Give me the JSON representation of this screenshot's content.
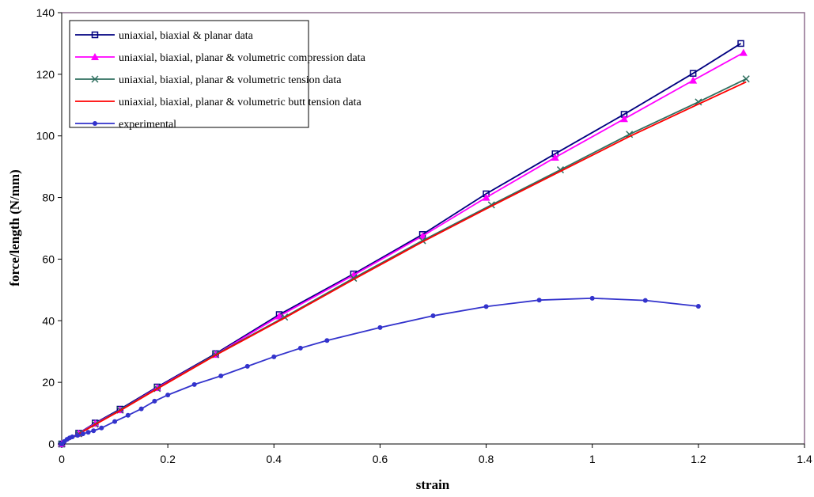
{
  "chart_data": {
    "type": "line",
    "x_label": "strain",
    "y_label": "force/length (N/mm)",
    "xlim": [
      0,
      1.4
    ],
    "xticks": [
      0,
      0.2,
      0.4,
      0.6,
      0.8,
      1,
      1.2,
      1.4
    ],
    "ylim": [
      0,
      140
    ],
    "yticks": [
      0,
      20,
      40,
      60,
      80,
      100,
      120,
      140
    ],
    "grid": false,
    "legend": "upper-left",
    "series": [
      {
        "name": "uniaxial, biaxial & planar data",
        "color": "#000080",
        "marker": "square",
        "x": [
          0,
          0.032,
          0.063,
          0.11,
          0.18,
          0.29,
          0.41,
          0.55,
          0.68,
          0.8,
          0.93,
          1.06,
          1.19,
          1.28
        ],
        "values": [
          0,
          3.5,
          6.8,
          11.3,
          18.5,
          29.3,
          42,
          55.2,
          68,
          81.2,
          94.2,
          107,
          120.3,
          130
        ]
      },
      {
        "name": "uniaxial, biaxial, planar & volumetric compression data",
        "color": "#ff00ff",
        "marker": "triangle",
        "x": [
          0,
          0.032,
          0.063,
          0.11,
          0.18,
          0.29,
          0.41,
          0.55,
          0.68,
          0.8,
          0.93,
          1.06,
          1.19,
          1.285
        ],
        "values": [
          0,
          3.4,
          6.6,
          11,
          18.2,
          29,
          41.5,
          54.8,
          67.5,
          80,
          93,
          105.5,
          118,
          127
        ]
      },
      {
        "name": "uniaxial, biaxial, planar & volumetric tension data",
        "color": "#2f6f5f",
        "marker": "x",
        "x": [
          0,
          0.032,
          0.063,
          0.11,
          0.18,
          0.29,
          0.42,
          0.55,
          0.68,
          0.81,
          0.94,
          1.07,
          1.2,
          1.29
        ],
        "values": [
          0,
          3.3,
          6.4,
          11,
          18,
          29,
          41.2,
          53.8,
          66,
          77.6,
          89,
          100.5,
          111,
          118.5
        ]
      },
      {
        "name": "uniaxial, biaxial, planar & volumetric butt tension data",
        "color": "#ff0000",
        "marker": "none",
        "x": [
          0,
          0.032,
          0.063,
          0.11,
          0.18,
          0.29,
          0.42,
          0.55,
          0.68,
          0.81,
          0.94,
          1.07,
          1.2,
          1.29
        ],
        "values": [
          0,
          3.2,
          6.3,
          10.8,
          17.9,
          28.8,
          40.9,
          53.4,
          65.6,
          77.2,
          88.5,
          99.8,
          110.3,
          117.5
        ]
      },
      {
        "name": "experimental",
        "color": "#3333cc",
        "marker": "circle",
        "x": [
          0,
          0.005,
          0.01,
          0.015,
          0.02,
          0.03,
          0.04,
          0.05,
          0.06,
          0.075,
          0.1,
          0.125,
          0.15,
          0.175,
          0.2,
          0.25,
          0.3,
          0.35,
          0.4,
          0.45,
          0.5,
          0.6,
          0.7,
          0.8,
          0.9,
          1,
          1.1,
          1.2
        ],
        "values": [
          0,
          0.8,
          1.5,
          2,
          2.3,
          2.8,
          3.3,
          3.8,
          4.3,
          5.2,
          7.3,
          9.3,
          11.4,
          13.9,
          15.9,
          19.3,
          22.1,
          25.2,
          28.3,
          31.1,
          33.6,
          37.8,
          41.6,
          44.6,
          46.7,
          47.3,
          46.6,
          44.7
        ]
      }
    ]
  }
}
